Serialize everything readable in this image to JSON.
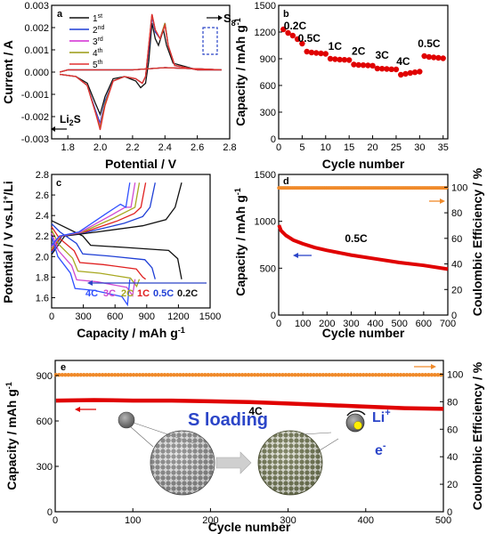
{
  "colors": {
    "c1": "#111111",
    "c2": "#1f3fd6",
    "c3": "#d42ad4",
    "c4": "#9a9a10",
    "c5": "#e03030",
    "cap": "#e00000",
    "ce": "#f08a2a",
    "blue": "#2b45c8",
    "pc_0.2C": "#111111",
    "pc_0.5C": "#1f3fd6",
    "pc_1C": "#e02020",
    "pc_2C": "#a8a820",
    "pc_3C": "#d04ad0",
    "pc_4C": "#3050ff"
  },
  "chart_data": [
    {
      "id": "a",
      "type": "line",
      "letter": "a",
      "xlabel": "Potential / V",
      "ylabel": "Current / A",
      "xlim": [
        1.7,
        2.8
      ],
      "ylim": [
        -0.003,
        0.003
      ],
      "xticks": [
        "1.8",
        "2.0",
        "2.2",
        "2.4",
        "2.6",
        "2.8"
      ],
      "yticks": [
        "-0.003",
        "-0.002",
        "-0.001",
        "0.000",
        "0.001",
        "0.002",
        "0.003"
      ],
      "legend": [
        "1st",
        "2nd",
        "3rd",
        "4th",
        "5th"
      ],
      "series": [
        {
          "name": "1st",
          "color": "c1",
          "points": [
            [
              1.75,
              -0.0001
            ],
            [
              1.85,
              -0.0002
            ],
            [
              1.92,
              -0.0005
            ],
            [
              1.97,
              -0.0014
            ],
            [
              2.0,
              -0.0019
            ],
            [
              2.03,
              -0.0011
            ],
            [
              2.08,
              -0.0003
            ],
            [
              2.15,
              -0.0002
            ],
            [
              2.22,
              -0.0004
            ],
            [
              2.25,
              -0.0007
            ],
            [
              2.28,
              -0.0005
            ],
            [
              2.3,
              0.0005
            ],
            [
              2.32,
              0.0022
            ],
            [
              2.34,
              0.0015
            ],
            [
              2.36,
              0.0012
            ],
            [
              2.39,
              0.0019
            ],
            [
              2.41,
              0.0012
            ],
            [
              2.45,
              0.0004
            ],
            [
              2.6,
              0.0001
            ],
            [
              2.75,
              0.0001
            ],
            [
              2.6,
              0.00015
            ],
            [
              2.4,
              0.0002
            ],
            [
              2.2,
              0.0001
            ],
            [
              2.0,
              0.0001
            ],
            [
              1.8,
              0.0001
            ],
            [
              1.75,
              0.0
            ]
          ]
        },
        {
          "name": "2nd",
          "color": "c2",
          "points": [
            [
              1.75,
              -0.0001
            ],
            [
              1.85,
              -0.0002
            ],
            [
              1.92,
              -0.0006
            ],
            [
              1.97,
              -0.0017
            ],
            [
              2.0,
              -0.0023
            ],
            [
              2.03,
              -0.0013
            ],
            [
              2.08,
              -0.0004
            ],
            [
              2.15,
              -0.0002
            ],
            [
              2.22,
              -0.0003
            ],
            [
              2.26,
              -0.0005
            ],
            [
              2.28,
              -0.0002
            ],
            [
              2.3,
              0.001
            ],
            [
              2.32,
              0.0025
            ],
            [
              2.34,
              0.0018
            ],
            [
              2.37,
              0.0015
            ],
            [
              2.4,
              0.0022
            ],
            [
              2.42,
              0.0012
            ],
            [
              2.46,
              0.0003
            ],
            [
              2.6,
              0.0001
            ],
            [
              2.75,
              0.0001
            ],
            [
              2.6,
              0.00015
            ],
            [
              2.4,
              0.0002
            ],
            [
              2.2,
              0.0001
            ],
            [
              2.0,
              0.0001
            ],
            [
              1.8,
              0.0001
            ],
            [
              1.75,
              0.0
            ]
          ]
        },
        {
          "name": "3rd",
          "color": "c3",
          "points": [
            [
              1.75,
              -0.0001
            ],
            [
              1.85,
              -0.0002
            ],
            [
              1.92,
              -0.0006
            ],
            [
              1.97,
              -0.0018
            ],
            [
              2.0,
              -0.0024
            ],
            [
              2.03,
              -0.0014
            ],
            [
              2.08,
              -0.0004
            ],
            [
              2.15,
              -0.0002
            ],
            [
              2.22,
              -0.0003
            ],
            [
              2.26,
              -0.0005
            ],
            [
              2.28,
              -0.0002
            ],
            [
              2.3,
              0.0012
            ],
            [
              2.32,
              0.0026
            ],
            [
              2.34,
              0.0019
            ],
            [
              2.37,
              0.0015
            ],
            [
              2.4,
              0.0022
            ],
            [
              2.42,
              0.0012
            ],
            [
              2.46,
              0.0003
            ],
            [
              2.6,
              0.0001
            ],
            [
              2.75,
              0.0001
            ],
            [
              2.6,
              0.00015
            ],
            [
              2.4,
              0.0002
            ],
            [
              2.2,
              0.0001
            ],
            [
              2.0,
              0.0001
            ],
            [
              1.8,
              0.0001
            ],
            [
              1.75,
              0.0
            ]
          ]
        },
        {
          "name": "4th",
          "color": "c4",
          "points": [
            [
              1.75,
              -0.0001
            ],
            [
              1.85,
              -0.0002
            ],
            [
              1.92,
              -0.0006
            ],
            [
              1.97,
              -0.0018
            ],
            [
              2.0,
              -0.0025
            ],
            [
              2.03,
              -0.0014
            ],
            [
              2.08,
              -0.0004
            ],
            [
              2.15,
              -0.0002
            ],
            [
              2.22,
              -0.0003
            ],
            [
              2.26,
              -0.0005
            ],
            [
              2.28,
              -0.0002
            ],
            [
              2.3,
              0.0012
            ],
            [
              2.32,
              0.0026
            ],
            [
              2.34,
              0.0019
            ],
            [
              2.37,
              0.0015
            ],
            [
              2.4,
              0.0022
            ],
            [
              2.42,
              0.0012
            ],
            [
              2.46,
              0.0003
            ],
            [
              2.6,
              0.0001
            ],
            [
              2.75,
              0.0001
            ],
            [
              2.6,
              0.00015
            ],
            [
              2.4,
              0.0002
            ],
            [
              2.2,
              0.0001
            ],
            [
              2.0,
              0.0001
            ],
            [
              1.8,
              0.0001
            ],
            [
              1.75,
              0.0
            ]
          ]
        },
        {
          "name": "5th",
          "color": "c5",
          "points": [
            [
              1.75,
              -0.0001
            ],
            [
              1.85,
              -0.0002
            ],
            [
              1.92,
              -0.0006
            ],
            [
              1.97,
              -0.0018
            ],
            [
              2.0,
              -0.0026
            ],
            [
              2.03,
              -0.0015
            ],
            [
              2.08,
              -0.0004
            ],
            [
              2.15,
              -0.0002
            ],
            [
              2.22,
              -0.0003
            ],
            [
              2.26,
              -0.0005
            ],
            [
              2.28,
              -0.0002
            ],
            [
              2.3,
              0.0012
            ],
            [
              2.32,
              0.0026
            ],
            [
              2.34,
              0.0019
            ],
            [
              2.37,
              0.0015
            ],
            [
              2.4,
              0.0021
            ],
            [
              2.42,
              0.0012
            ],
            [
              2.46,
              0.0003
            ],
            [
              2.6,
              0.0001
            ],
            [
              2.75,
              0.0001
            ],
            [
              2.6,
              0.00015
            ],
            [
              2.4,
              0.0002
            ],
            [
              2.2,
              0.0001
            ],
            [
              2.0,
              0.0001
            ],
            [
              1.8,
              0.0001
            ],
            [
              1.75,
              0.0
            ]
          ]
        }
      ],
      "annotations": {
        "s8": "S",
        "s8_sub": "8",
        "li2s": "Li",
        "li2s_sub": "2",
        "li2s_tail": "S"
      }
    },
    {
      "id": "b",
      "type": "scatter",
      "letter": "b",
      "xlabel": "Cycle number",
      "ylabel": "Capacity / mAh g",
      "xlim": [
        0,
        36
      ],
      "ylim": [
        0,
        1500
      ],
      "xticks": [
        "0",
        "5",
        "10",
        "15",
        "20",
        "25",
        "30",
        "35"
      ],
      "yticks": [
        "0",
        "300",
        "600",
        "900",
        "1200",
        "1500"
      ],
      "x": [
        1,
        2,
        3,
        4,
        5,
        6,
        7,
        8,
        9,
        10,
        11,
        12,
        13,
        14,
        15,
        16,
        17,
        18,
        19,
        20,
        21,
        22,
        23,
        24,
        25,
        26,
        27,
        28,
        29,
        30,
        31,
        32,
        33,
        34,
        35
      ],
      "values": [
        1230,
        1190,
        1160,
        1120,
        1070,
        980,
        970,
        965,
        960,
        955,
        900,
        895,
        890,
        888,
        885,
        835,
        830,
        828,
        825,
        822,
        790,
        788,
        785,
        782,
        780,
        720,
        730,
        740,
        748,
        755,
        930,
        920,
        915,
        910,
        905
      ],
      "rate_labels": [
        {
          "text": "0.2C",
          "x": 3.5,
          "y": 1230
        },
        {
          "text": "0.5C",
          "x": 6.5,
          "y": 1090
        },
        {
          "text": "1C",
          "x": 12,
          "y": 1000
        },
        {
          "text": "2C",
          "x": 17,
          "y": 945
        },
        {
          "text": "3C",
          "x": 22,
          "y": 900
        },
        {
          "text": "4C",
          "x": 26.5,
          "y": 830
        },
        {
          "text": "0.5C",
          "x": 32,
          "y": 1030
        }
      ]
    },
    {
      "id": "c",
      "type": "line",
      "letter": "c",
      "xlabel": "Capacity / mAh g",
      "ylabel": "Potential / V vs.Li",
      "xlim": [
        0,
        1500
      ],
      "ylim": [
        1.5,
        2.8
      ],
      "xticks": [
        "0",
        "300",
        "600",
        "900",
        "1200",
        "1500"
      ],
      "yticks": [
        "1.6",
        "1.8",
        "2.0",
        "2.2",
        "2.4",
        "2.6",
        "2.8"
      ],
      "rates": [
        "4C",
        "3C",
        "2C",
        "1C",
        "0.5C",
        "0.2C"
      ],
      "series": [
        {
          "name": "0.2C",
          "color": "pc_0.2C",
          "capacity": 1230
        },
        {
          "name": "0.5C",
          "color": "pc_0.5C",
          "capacity": 980
        },
        {
          "name": "1C",
          "color": "pc_1C",
          "capacity": 890
        },
        {
          "name": "2C",
          "color": "pc_2C",
          "capacity": 830
        },
        {
          "name": "3C",
          "color": "pc_3C",
          "capacity": 790
        },
        {
          "name": "4C",
          "color": "pc_4C",
          "capacity": 740
        }
      ]
    },
    {
      "id": "d",
      "type": "line",
      "letter": "d",
      "xlabel": "Cycle number",
      "ylabel": "Capacity / mAh g",
      "y2label": "Coulombic Efficiency / %",
      "xlim": [
        0,
        700
      ],
      "ylim": [
        0,
        1500
      ],
      "y2lim": [
        0,
        110
      ],
      "xticks": [
        "0",
        "100",
        "200",
        "300",
        "400",
        "500",
        "600",
        "700"
      ],
      "yticks": [
        "0",
        "500",
        "1000",
        "1500"
      ],
      "y2ticks": [
        "0",
        "20",
        "40",
        "60",
        "80",
        "100"
      ],
      "capacity": [
        [
          1,
          960
        ],
        [
          10,
          900
        ],
        [
          30,
          850
        ],
        [
          60,
          800
        ],
        [
          100,
          760
        ],
        [
          150,
          720
        ],
        [
          200,
          690
        ],
        [
          300,
          640
        ],
        [
          400,
          600
        ],
        [
          500,
          560
        ],
        [
          600,
          530
        ],
        [
          700,
          490
        ]
      ],
      "ce": 99.5,
      "rate_label": "0.5C"
    },
    {
      "id": "e",
      "type": "line",
      "letter": "e",
      "xlabel": "Cycle number",
      "ylabel": "Capacity / mAh g",
      "y2label": "Coulombic Efficiency / %",
      "xlim": [
        0,
        500
      ],
      "ylim": [
        0,
        1000
      ],
      "y2lim": [
        0,
        110
      ],
      "xticks": [
        "0",
        "100",
        "200",
        "300",
        "400",
        "500"
      ],
      "yticks": [
        "0",
        "300",
        "600",
        "900"
      ],
      "y2ticks": [
        "0",
        "20",
        "40",
        "60",
        "80",
        "100"
      ],
      "capacity": [
        [
          1,
          735
        ],
        [
          50,
          738
        ],
        [
          100,
          735
        ],
        [
          150,
          735
        ],
        [
          200,
          730
        ],
        [
          250,
          725
        ],
        [
          300,
          715
        ],
        [
          350,
          705
        ],
        [
          400,
          695
        ],
        [
          450,
          685
        ],
        [
          500,
          680
        ]
      ],
      "ce": 99.5,
      "rate_label": "4C",
      "scheme": {
        "title": "S loading",
        "li_ion": "Li",
        "li_sup": "+",
        "electron": "e",
        "e_sup": "-"
      }
    }
  ],
  "units": {
    "g_sup": "-1",
    "li_sup": "+",
    "li_tail": "/Li"
  }
}
